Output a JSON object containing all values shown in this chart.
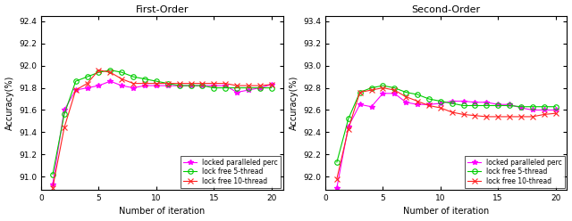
{
  "left_title": "First-Order",
  "right_title": "Second-Order",
  "xlabel": "Number of iteration",
  "ylabel": "Accuracy(%)",
  "left_ylim": [
    90.88,
    92.45
  ],
  "right_ylim": [
    91.88,
    93.45
  ],
  "left_yticks": [
    91.0,
    91.2,
    91.4,
    91.6,
    91.8,
    92.0,
    92.2,
    92.4
  ],
  "right_yticks": [
    92.0,
    92.2,
    92.4,
    92.6,
    92.8,
    93.0,
    93.2,
    93.4
  ],
  "xticks": [
    0,
    5,
    10,
    15,
    20
  ],
  "xlim": [
    0,
    21
  ],
  "iterations": [
    1,
    2,
    3,
    4,
    5,
    6,
    7,
    8,
    9,
    10,
    11,
    12,
    13,
    14,
    15,
    16,
    17,
    18,
    19,
    20
  ],
  "left_locked": [
    90.93,
    91.6,
    91.78,
    91.8,
    91.82,
    91.86,
    91.82,
    91.8,
    91.82,
    91.82,
    91.82,
    91.82,
    91.82,
    91.82,
    91.82,
    91.82,
    91.76,
    91.78,
    91.8,
    91.83
  ],
  "left_5thread": [
    91.02,
    91.56,
    91.86,
    91.9,
    91.94,
    91.96,
    91.94,
    91.9,
    91.88,
    91.86,
    91.84,
    91.82,
    91.82,
    91.82,
    91.8,
    91.8,
    91.8,
    91.8,
    91.8,
    91.8
  ],
  "left_10thread": [
    90.9,
    91.44,
    91.78,
    91.84,
    91.96,
    91.94,
    91.88,
    91.84,
    91.84,
    91.84,
    91.84,
    91.84,
    91.84,
    91.84,
    91.84,
    91.84,
    91.82,
    91.82,
    91.82,
    91.83
  ],
  "right_locked": [
    91.9,
    92.45,
    92.65,
    92.63,
    92.75,
    92.75,
    92.67,
    92.65,
    92.65,
    92.66,
    92.68,
    92.68,
    92.67,
    92.67,
    92.65,
    92.65,
    92.62,
    92.6,
    92.6,
    92.6
  ],
  "right_5thread": [
    92.13,
    92.52,
    92.76,
    92.8,
    92.82,
    92.8,
    92.76,
    92.74,
    92.7,
    92.68,
    92.66,
    92.64,
    92.64,
    92.64,
    92.64,
    92.64,
    92.63,
    92.63,
    92.63,
    92.63
  ],
  "right_10thread": [
    91.98,
    92.43,
    92.76,
    92.78,
    92.8,
    92.78,
    92.72,
    92.68,
    92.64,
    92.62,
    92.58,
    92.56,
    92.55,
    92.54,
    92.54,
    92.54,
    92.54,
    92.54,
    92.56,
    92.57
  ],
  "color_locked": "#ff00ff",
  "color_5thread": "#00cc00",
  "color_10thread": "#ff2222",
  "legend_labels": [
    "locked paralleled perc",
    "lock free 5-thread",
    "lock free 10-thread"
  ]
}
